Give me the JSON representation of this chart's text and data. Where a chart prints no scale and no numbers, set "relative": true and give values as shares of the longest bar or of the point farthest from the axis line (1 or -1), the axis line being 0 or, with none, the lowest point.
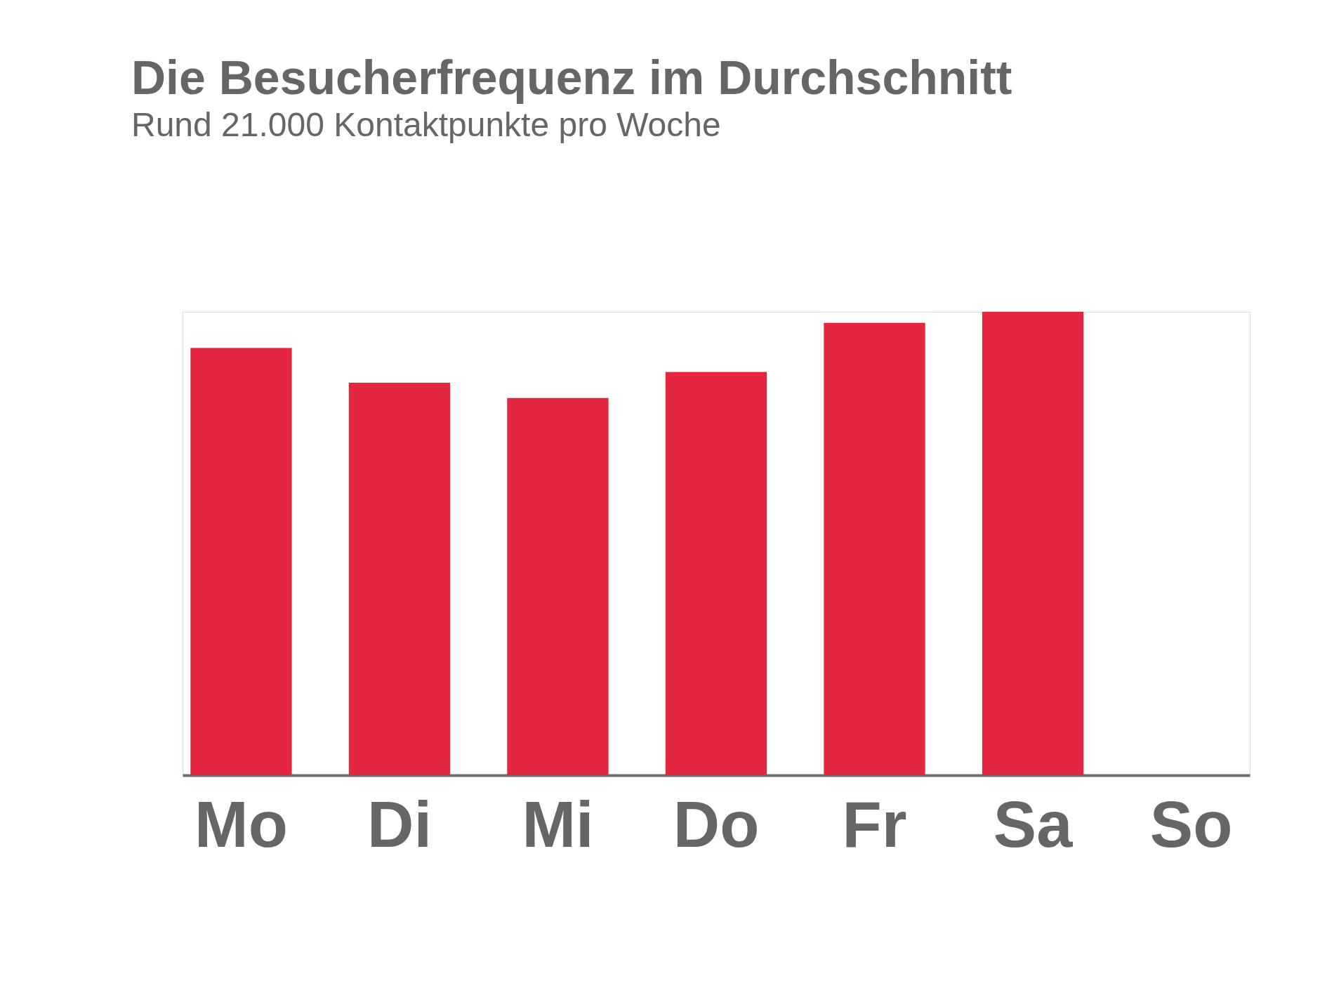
{
  "chart_data": {
    "type": "bar",
    "title": "Die Besucherfrequenz im Durchschnitt",
    "subtitle": "Rund 21.000 Kontaktpunkte pro Woche",
    "relative": true,
    "grid": false,
    "color": "#e32740",
    "categories": [
      "Mo",
      "Di",
      "Mi",
      "Do",
      "Fr",
      "Sa",
      "So"
    ],
    "values": [
      0.922,
      0.847,
      0.814,
      0.87,
      0.976,
      1,
      0
    ]
  }
}
